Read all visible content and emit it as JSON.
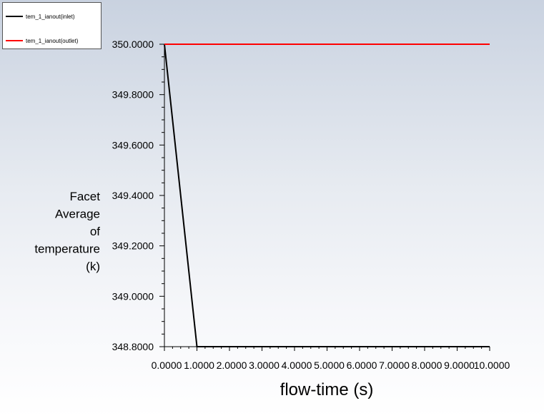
{
  "chart_data": {
    "type": "line",
    "title": "",
    "xlabel": "flow-time (s)",
    "ylabel_lines": [
      "Facet",
      "Average",
      "of",
      "temperature",
      "(k)"
    ],
    "xlim": [
      0,
      10
    ],
    "ylim": [
      348.8,
      350.0
    ],
    "x_ticks": [
      0,
      1,
      2,
      3,
      4,
      5,
      6,
      7,
      8,
      9,
      10
    ],
    "x_tick_labels": [
      "0.0000",
      "1.0000",
      "2.0000",
      "3.0000",
      "4.0000",
      "5.0000",
      "6.0000",
      "7.0000",
      "8.0000",
      "9.0000",
      "10.0000"
    ],
    "y_ticks": [
      348.8,
      349.0,
      349.2,
      349.4,
      349.6,
      349.8,
      350.0
    ],
    "y_tick_labels": [
      "348.8000",
      "349.0000",
      "349.2000",
      "349.4000",
      "349.6000",
      "349.8000",
      "350.0000"
    ],
    "grid": false,
    "legend_position": "top-left",
    "series": [
      {
        "name": "tem_1_ianout(inlet)",
        "color": "#000000",
        "x": [
          0,
          1,
          2,
          3,
          4,
          5,
          6,
          7,
          8,
          9,
          10
        ],
        "y": [
          350.0,
          348.8,
          348.8,
          348.8,
          348.8,
          348.8,
          348.8,
          348.8,
          348.8,
          348.8,
          348.8
        ]
      },
      {
        "name": "tem_1_ianout(outlet)",
        "color": "#ff0000",
        "x": [
          0,
          1,
          2,
          3,
          4,
          5,
          6,
          7,
          8,
          9,
          10
        ],
        "y": [
          350.0,
          350.0,
          350.0,
          350.0,
          350.0,
          350.0,
          350.0,
          350.0,
          350.0,
          350.0,
          350.0
        ]
      }
    ]
  }
}
